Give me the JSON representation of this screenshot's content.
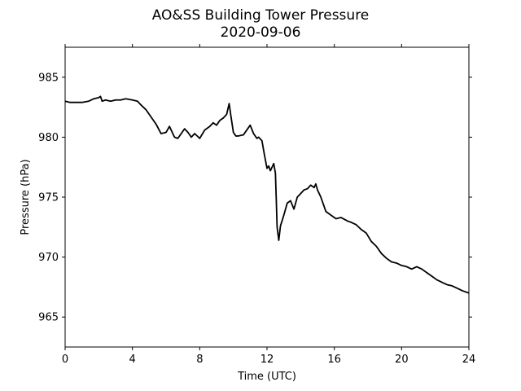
{
  "chart_data": {
    "type": "line",
    "title": "AO&SS Building Tower Pressure",
    "subtitle": "2020-09-06",
    "xlabel": "Time (UTC)",
    "ylabel": "Pressure (hPa)",
    "xlim": [
      0,
      24
    ],
    "ylim": [
      962.5,
      987.5
    ],
    "x_ticks": [
      0,
      4,
      8,
      12,
      16,
      20,
      24
    ],
    "y_ticks": [
      965,
      970,
      975,
      980,
      985
    ],
    "grid": false,
    "line_color": "#000000",
    "series": [
      {
        "x": [
          0,
          0.3,
          0.6,
          1.0,
          1.4,
          1.7,
          2.0,
          2.1,
          2.2,
          2.4,
          2.7,
          3.0,
          3.3,
          3.6,
          4.0,
          4.3,
          4.5,
          4.8,
          5.1,
          5.4,
          5.7,
          6.0,
          6.2,
          6.5,
          6.7,
          6.9,
          7.1,
          7.3,
          7.5,
          7.7,
          8.0,
          8.3,
          8.6,
          8.8,
          9.0,
          9.2,
          9.4,
          9.6,
          9.75,
          9.85,
          10.0,
          10.15,
          10.3,
          10.6,
          10.8,
          11.0,
          11.2,
          11.4,
          11.5,
          11.7,
          11.85,
          12.0,
          12.1,
          12.2,
          12.3,
          12.4,
          12.5,
          12.55,
          12.6,
          12.7,
          12.8,
          13.0,
          13.2,
          13.4,
          13.6,
          13.8,
          14.0,
          14.2,
          14.4,
          14.6,
          14.8,
          14.9,
          15.0,
          15.2,
          15.5,
          15.8,
          16.1,
          16.4,
          16.8,
          17.0,
          17.3,
          17.6,
          17.9,
          18.2,
          18.5,
          18.8,
          19.1,
          19.4,
          19.7,
          20.0,
          20.3,
          20.6,
          20.9,
          21.2,
          21.5,
          21.8,
          22.1,
          22.4,
          22.7,
          23.0,
          23.3,
          23.6,
          24.0
        ],
        "values": [
          983.0,
          982.9,
          982.9,
          982.9,
          983.0,
          983.2,
          983.3,
          983.4,
          983.0,
          983.1,
          983.0,
          983.1,
          983.1,
          983.2,
          983.1,
          983.0,
          982.7,
          982.3,
          981.7,
          981.1,
          980.3,
          980.4,
          980.9,
          980.0,
          979.9,
          980.3,
          980.7,
          980.4,
          980.0,
          980.3,
          979.9,
          980.6,
          980.9,
          981.2,
          981.0,
          981.4,
          981.6,
          981.9,
          982.8,
          981.8,
          980.4,
          980.1,
          980.1,
          980.2,
          980.6,
          981.0,
          980.3,
          979.9,
          980.0,
          979.7,
          978.5,
          977.4,
          977.6,
          977.2,
          977.5,
          977.8,
          977.0,
          974.8,
          972.5,
          971.4,
          972.6,
          973.5,
          974.5,
          974.7,
          974.0,
          975.0,
          975.3,
          975.6,
          975.7,
          976.0,
          975.8,
          976.1,
          975.6,
          975.0,
          973.8,
          973.5,
          973.2,
          973.3,
          973.0,
          972.9,
          972.7,
          972.3,
          972.0,
          971.3,
          970.9,
          970.3,
          969.9,
          969.6,
          969.5,
          969.3,
          969.2,
          969.0,
          969.2,
          969.0,
          968.7,
          968.4,
          968.1,
          967.9,
          967.7,
          967.6,
          967.4,
          967.2,
          967.0
        ]
      }
    ]
  }
}
